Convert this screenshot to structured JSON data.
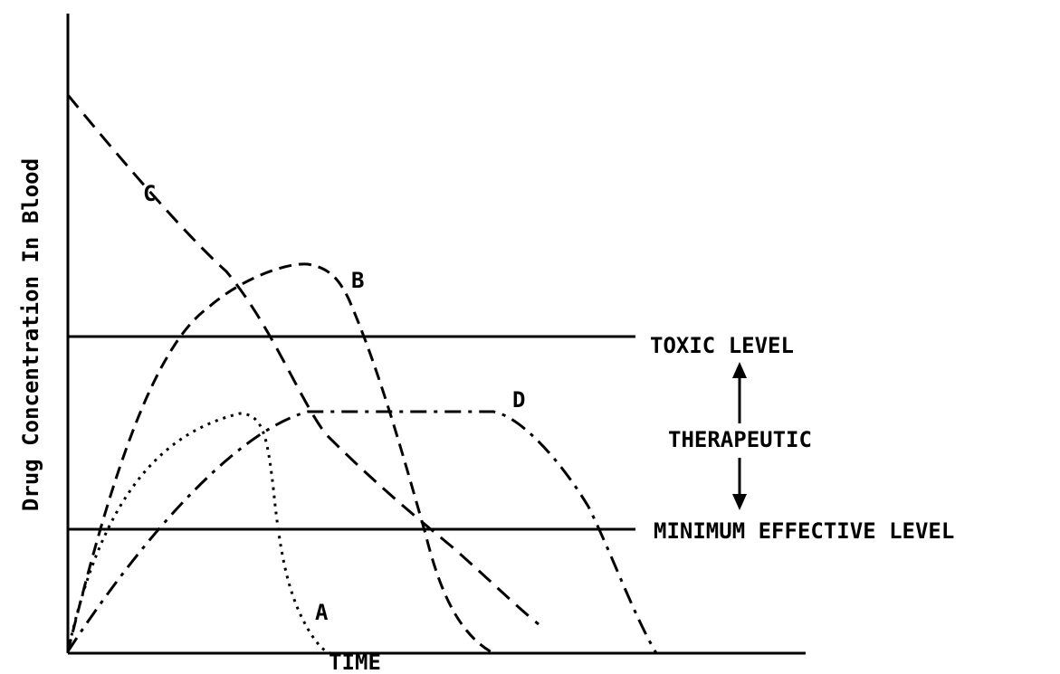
{
  "y_axis_label": "Drug Concentration In Blood",
  "x_axis_label": "TIME",
  "curves": [
    {
      "label": "A"
    },
    {
      "label": "B"
    },
    {
      "label": "C"
    },
    {
      "label": "D"
    }
  ],
  "levels": {
    "toxic": "TOXIC LEVEL",
    "therapeutic": "THERAPEUTIC",
    "minimum_effective": "MINIMUM EFFECTIVE LEVEL"
  }
}
